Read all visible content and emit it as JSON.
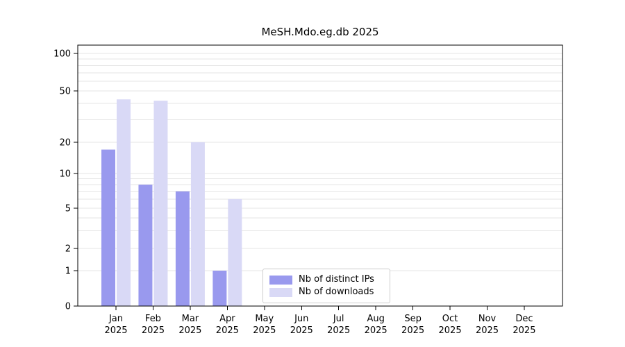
{
  "chart_data": {
    "type": "bar",
    "title": "MeSH.Mdo.eg.db 2025",
    "x_year": "2025",
    "categories": [
      "Jan",
      "Feb",
      "Mar",
      "Apr",
      "May",
      "Jun",
      "Jul",
      "Aug",
      "Sep",
      "Oct",
      "Nov",
      "Dec"
    ],
    "series": [
      {
        "name": "Nb of distinct IPs",
        "color": "#9999ee",
        "values": [
          17,
          8,
          7,
          1,
          0,
          0,
          0,
          0,
          0,
          0,
          0,
          0
        ]
      },
      {
        "name": "Nb of downloads",
        "color": "#d9d9f6",
        "values": [
          43,
          42,
          20,
          6,
          0,
          0,
          0,
          0,
          0,
          0,
          0,
          0
        ]
      }
    ],
    "yticks": [
      0,
      1,
      2,
      5,
      10,
      20,
      50,
      100
    ],
    "minor_gridlines": [
      3,
      4,
      6,
      7,
      8,
      9,
      30,
      40,
      60,
      70,
      80,
      90
    ],
    "scale": "log",
    "ylim": [
      0,
      120
    ],
    "grid": true,
    "legend_position": "bottom-center",
    "xlabel": "",
    "ylabel": ""
  }
}
